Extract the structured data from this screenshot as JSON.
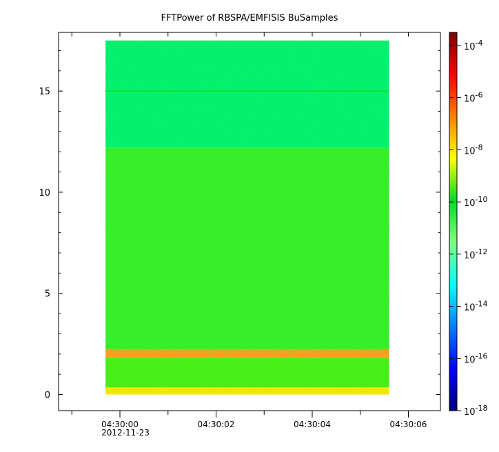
{
  "chart_data": {
    "type": "heatmap",
    "title": "FFTPower of RBSPA/EMFISIS  BuSamples",
    "xlabel": "",
    "ylabel": "",
    "x_tick_labels": [
      "04:30:00",
      "04:30:02",
      "04:30:04",
      "04:30:06"
    ],
    "x_tick_values_sec": [
      0,
      2,
      4,
      6
    ],
    "x_date_label": "2012-11-23",
    "xlim_sec": [
      -1.0,
      6.6
    ],
    "data_xrange_sec": [
      -0.3,
      5.6
    ],
    "ylim": [
      -0.8,
      17.9
    ],
    "y_ticks": [
      0,
      5,
      10,
      15
    ],
    "data_yrange": [
      0,
      17.5
    ],
    "colorbar": {
      "scale": "log",
      "range_exponents": [
        -18,
        -3.5
      ],
      "tick_exponents": [
        -4,
        -6,
        -8,
        -10,
        -12,
        -14,
        -16,
        -18
      ],
      "tick_labels": [
        "10",
        "10",
        "10",
        "10",
        "10",
        "10",
        "10",
        "10"
      ],
      "tick_superscripts": [
        "-4",
        "-6",
        "-8",
        "-10",
        "-12",
        "-14",
        "-16",
        "-18"
      ],
      "colormap": [
        "#00007f",
        "#0000ff",
        "#007fff",
        "#00ffff",
        "#7fff7f",
        "#00dd22",
        "#ffff00",
        "#ff7f00",
        "#ff0000",
        "#7f0000"
      ]
    },
    "bands": [
      {
        "y_from": 0.0,
        "y_to": 0.35,
        "log_power": -8.2,
        "color": "#f2e600"
      },
      {
        "y_from": 0.35,
        "y_to": 1.8,
        "log_power": -10.2,
        "color": "#44ee1a"
      },
      {
        "y_from": 1.8,
        "y_to": 2.25,
        "log_power": -7.5,
        "color": "#f0a020"
      },
      {
        "y_from": 2.25,
        "y_to": 12.2,
        "log_power": -10.4,
        "color": "#33ee2a"
      },
      {
        "y_from": 12.2,
        "y_to": 17.5,
        "log_power": -12.5,
        "color": "#00f070"
      }
    ],
    "features": [
      {
        "y": 15.0,
        "note": "narrow line",
        "color": "#10e030"
      }
    ],
    "grid": false
  }
}
